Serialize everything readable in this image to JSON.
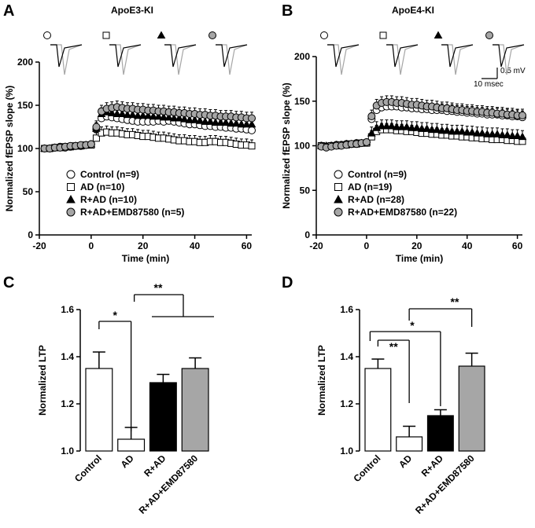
{
  "colors": {
    "axis": "#000000",
    "control": "#ffffff",
    "ad": "#ffffff",
    "r_ad": "#000000",
    "emd": "#a6a6a6",
    "trace_light": "#a6a6a6",
    "trace_dark": "#000000"
  },
  "scale_bar": {
    "voltage": "0.5 mV",
    "time": "10 msec"
  },
  "chart_data": [
    {
      "panel": "A",
      "type": "scatter",
      "title": "ApoE3-KI",
      "xlabel": "Time (min)",
      "ylabel": "Normalized fEPSP slope (%)",
      "xlim": [
        -20,
        62
      ],
      "ylim": [
        0,
        200
      ],
      "xticks": [
        -20,
        0,
        20,
        40,
        60
      ],
      "yticks": [
        0,
        50,
        100,
        150,
        200
      ],
      "legend_position": "bottom-left",
      "series": [
        {
          "name": "Control (n=9)",
          "marker": "circle",
          "fill": "#ffffff",
          "x": [
            -18,
            -16,
            -14,
            -12,
            -10,
            -8,
            -6,
            -4,
            -2,
            0,
            2,
            4,
            6,
            8,
            10,
            12,
            14,
            16,
            18,
            20,
            22,
            24,
            26,
            28,
            30,
            32,
            34,
            36,
            38,
            40,
            42,
            44,
            46,
            48,
            50,
            52,
            54,
            56,
            58,
            60,
            62
          ],
          "values": [
            100,
            100,
            101,
            102,
            101,
            102,
            103,
            103,
            104,
            105,
            122,
            135,
            137,
            136,
            135,
            134,
            133,
            132,
            131,
            131,
            131,
            131,
            132,
            131,
            132,
            131,
            130,
            129,
            128,
            128,
            127,
            126,
            126,
            125,
            125,
            124,
            124,
            123,
            123,
            122,
            121
          ]
        },
        {
          "name": "AD (n=10)",
          "marker": "square",
          "fill": "#ffffff",
          "x": [
            -18,
            -16,
            -14,
            -12,
            -10,
            -8,
            -6,
            -4,
            -2,
            0,
            2,
            4,
            6,
            8,
            10,
            12,
            14,
            16,
            18,
            20,
            22,
            24,
            26,
            28,
            30,
            32,
            34,
            36,
            38,
            40,
            42,
            44,
            46,
            48,
            50,
            52,
            54,
            56,
            58,
            60,
            62
          ],
          "values": [
            100,
            100,
            101,
            101,
            102,
            102,
            103,
            103,
            104,
            104,
            112,
            118,
            119,
            118,
            118,
            117,
            116,
            116,
            115,
            114,
            114,
            113,
            112,
            112,
            111,
            110,
            109,
            109,
            108,
            108,
            107,
            107,
            108,
            108,
            107,
            107,
            106,
            105,
            104,
            104,
            103
          ]
        },
        {
          "name": "R+AD (n=10)",
          "marker": "triangle",
          "fill": "#000000",
          "x": [
            -18,
            -16,
            -14,
            -12,
            -10,
            -8,
            -6,
            -4,
            -2,
            0,
            2,
            4,
            6,
            8,
            10,
            12,
            14,
            16,
            18,
            20,
            22,
            24,
            26,
            28,
            30,
            32,
            34,
            36,
            38,
            40,
            42,
            44,
            46,
            48,
            50,
            52,
            54,
            56,
            58,
            60,
            62
          ],
          "values": [
            100,
            100,
            101,
            101,
            102,
            102,
            103,
            103,
            104,
            105,
            123,
            140,
            142,
            141,
            140,
            140,
            139,
            139,
            138,
            138,
            138,
            137,
            137,
            136,
            136,
            135,
            135,
            134,
            133,
            133,
            132,
            131,
            131,
            130,
            130,
            130,
            129,
            129,
            128,
            128,
            128
          ]
        },
        {
          "name": "R+AD+EMD87580 (n=5)",
          "marker": "circle",
          "fill": "#a6a6a6",
          "x": [
            -18,
            -16,
            -14,
            -12,
            -10,
            -8,
            -6,
            -4,
            -2,
            0,
            2,
            4,
            6,
            8,
            10,
            12,
            14,
            16,
            18,
            20,
            22,
            24,
            26,
            28,
            30,
            32,
            34,
            36,
            38,
            40,
            42,
            44,
            46,
            48,
            50,
            52,
            54,
            56,
            58,
            60,
            62
          ],
          "values": [
            100,
            100,
            101,
            101,
            102,
            103,
            103,
            104,
            104,
            105,
            125,
            143,
            146,
            147,
            148,
            147,
            146,
            146,
            145,
            145,
            144,
            144,
            143,
            143,
            142,
            142,
            141,
            141,
            140,
            140,
            139,
            139,
            138,
            138,
            137,
            137,
            137,
            136,
            136,
            135,
            135
          ]
        }
      ]
    },
    {
      "panel": "B",
      "type": "scatter",
      "title": "ApoE4-KI",
      "xlabel": "Time (min)",
      "ylabel": "Normalized fEPSP slope (%)",
      "xlim": [
        -20,
        62
      ],
      "ylim": [
        0,
        200
      ],
      "xticks": [
        -20,
        0,
        20,
        40,
        60
      ],
      "yticks": [
        0,
        50,
        100,
        150,
        200
      ],
      "legend_position": "bottom-left",
      "series": [
        {
          "name": "Control (n=9)",
          "marker": "circle",
          "fill": "#ffffff",
          "x": [
            -18,
            -16,
            -14,
            -12,
            -10,
            -8,
            -6,
            -4,
            -2,
            0,
            2,
            4,
            6,
            8,
            10,
            12,
            14,
            16,
            18,
            20,
            22,
            24,
            26,
            28,
            30,
            32,
            34,
            36,
            38,
            40,
            42,
            44,
            46,
            48,
            50,
            52,
            54,
            56,
            58,
            60,
            62
          ],
          "values": [
            100,
            99,
            100,
            101,
            101,
            102,
            102,
            103,
            103,
            104,
            130,
            140,
            143,
            144,
            144,
            144,
            143,
            143,
            142,
            142,
            141,
            141,
            140,
            140,
            140,
            139,
            139,
            138,
            138,
            137,
            137,
            136,
            136,
            135,
            135,
            135,
            134,
            134,
            133,
            133,
            132
          ]
        },
        {
          "name": "AD (n=19)",
          "marker": "square",
          "fill": "#ffffff",
          "x": [
            -18,
            -16,
            -14,
            -12,
            -10,
            -8,
            -6,
            -4,
            -2,
            0,
            2,
            4,
            6,
            8,
            10,
            12,
            14,
            16,
            18,
            20,
            22,
            24,
            26,
            28,
            30,
            32,
            34,
            36,
            38,
            40,
            42,
            44,
            46,
            48,
            50,
            52,
            54,
            56,
            58,
            60,
            62
          ],
          "values": [
            100,
            99,
            100,
            100,
            101,
            101,
            102,
            102,
            103,
            103,
            110,
            116,
            118,
            118,
            118,
            117,
            117,
            116,
            116,
            115,
            114,
            114,
            113,
            113,
            112,
            112,
            111,
            111,
            110,
            110,
            109,
            109,
            108,
            108,
            107,
            107,
            107,
            106,
            106,
            105,
            105
          ]
        },
        {
          "name": "R+AD (n=28)",
          "marker": "triangle",
          "fill": "#000000",
          "x": [
            -18,
            -16,
            -14,
            -12,
            -10,
            -8,
            -6,
            -4,
            -2,
            0,
            2,
            4,
            6,
            8,
            10,
            12,
            14,
            16,
            18,
            20,
            22,
            24,
            26,
            28,
            30,
            32,
            34,
            36,
            38,
            40,
            42,
            44,
            46,
            48,
            50,
            52,
            54,
            56,
            58,
            60,
            62
          ],
          "values": [
            100,
            100,
            100,
            101,
            101,
            102,
            102,
            103,
            103,
            104,
            114,
            120,
            122,
            122,
            122,
            121,
            121,
            121,
            120,
            120,
            119,
            119,
            118,
            118,
            117,
            117,
            116,
            116,
            116,
            115,
            115,
            114,
            114,
            113,
            113,
            113,
            112,
            112,
            111,
            111,
            110
          ]
        },
        {
          "name": "R+AD+EMD87580 (n=22)",
          "marker": "circle",
          "fill": "#a6a6a6",
          "x": [
            -18,
            -16,
            -14,
            -12,
            -10,
            -8,
            -6,
            -4,
            -2,
            0,
            2,
            4,
            6,
            8,
            10,
            12,
            14,
            16,
            18,
            20,
            22,
            24,
            26,
            28,
            30,
            32,
            34,
            36,
            38,
            40,
            42,
            44,
            46,
            48,
            50,
            52,
            54,
            56,
            58,
            60,
            62
          ],
          "values": [
            99,
            98,
            99,
            100,
            100,
            101,
            102,
            102,
            103,
            104,
            133,
            145,
            148,
            149,
            149,
            148,
            148,
            147,
            146,
            146,
            145,
            144,
            144,
            143,
            142,
            142,
            141,
            140,
            140,
            139,
            139,
            138,
            138,
            137,
            137,
            136,
            136,
            135,
            135,
            134,
            134
          ]
        }
      ]
    },
    {
      "panel": "C",
      "type": "bar",
      "ylabel": "Normalized LTP",
      "ylim": [
        1.0,
        1.6
      ],
      "yticks": [
        1.0,
        1.2,
        1.4,
        1.6
      ],
      "categories": [
        "Control",
        "AD",
        "R+AD",
        "R+AD+EMD87580"
      ],
      "values": [
        1.35,
        1.05,
        1.29,
        1.35
      ],
      "errors": [
        0.07,
        0.05,
        0.035,
        0.045
      ],
      "fills": [
        "#ffffff",
        "#ffffff",
        "#000000",
        "#a6a6a6"
      ],
      "significance": [
        "*",
        "**"
      ]
    },
    {
      "panel": "D",
      "type": "bar",
      "ylabel": "Normalized LTP",
      "ylim": [
        1.0,
        1.6
      ],
      "yticks": [
        1.0,
        1.2,
        1.4,
        1.6
      ],
      "categories": [
        "Control",
        "AD",
        "R+AD",
        "R+AD+EMD87580"
      ],
      "values": [
        1.35,
        1.06,
        1.15,
        1.36
      ],
      "errors": [
        0.04,
        0.045,
        0.025,
        0.055
      ],
      "fills": [
        "#ffffff",
        "#ffffff",
        "#000000",
        "#a6a6a6"
      ],
      "significance": [
        "**",
        "*",
        "**"
      ]
    }
  ]
}
